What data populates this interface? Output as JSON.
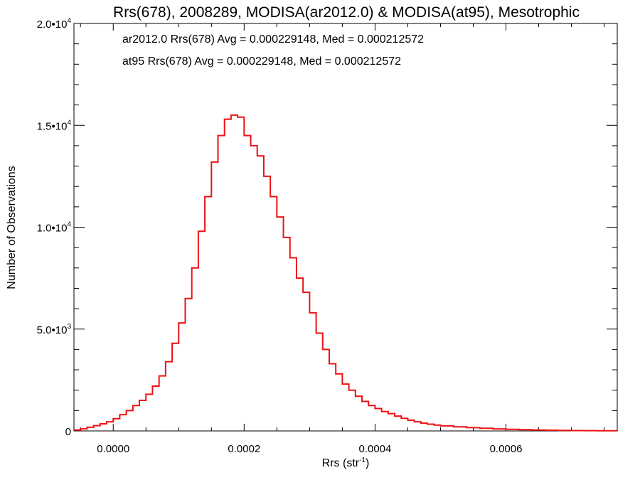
{
  "chart_data": {
    "type": "line",
    "title": "Rrs(678), 2008289, MODISA(ar2012.0) & MODISA(at95), Mesotrophic",
    "xlabel": "Rrs (str",
    "xlabel_sup": "-1",
    "xlabel_suffix": ")",
    "ylabel": "Number of Observations",
    "xlim": [
      -6e-05,
      0.00077
    ],
    "ylim": [
      0,
      20000
    ],
    "x_ticks": [
      {
        "value": 0.0,
        "label": "0.0000"
      },
      {
        "value": 0.0002,
        "label": "0.0002"
      },
      {
        "value": 0.0004,
        "label": "0.0004"
      },
      {
        "value": 0.0006,
        "label": "0.0006"
      }
    ],
    "y_ticks": [
      {
        "value": 0,
        "label": "0",
        "sup": ""
      },
      {
        "value": 5000,
        "label": "5.0•10",
        "sup": "3"
      },
      {
        "value": 10000,
        "label": "1.0•10",
        "sup": "4"
      },
      {
        "value": 15000,
        "label": "1.5•10",
        "sup": "4"
      },
      {
        "value": 20000,
        "label": "2.0•10",
        "sup": "4"
      }
    ],
    "annotations": [
      {
        "text": "ar2012.0 Rrs(678) Avg = 0.000229148, Med = 0.000212572",
        "color": "#000000"
      },
      {
        "text": "at95 Rrs(678) Avg = 0.000229148, Med = 0.000212572",
        "color": "#ee1111"
      }
    ],
    "series": [
      {
        "color": "#ee1111",
        "drawstyle": "steps",
        "x": [
          -6e-05,
          -5e-05,
          -4e-05,
          -3e-05,
          -2e-05,
          -1e-05,
          0.0,
          1e-05,
          2e-05,
          3e-05,
          4e-05,
          5e-05,
          6e-05,
          7e-05,
          8e-05,
          9e-05,
          0.0001,
          0.00011,
          0.00012,
          0.00013,
          0.00014,
          0.00015,
          0.00016,
          0.00017,
          0.00018,
          0.00019,
          0.0002,
          0.00021,
          0.00022,
          0.00023,
          0.00024,
          0.00025,
          0.00026,
          0.00027,
          0.00028,
          0.00029,
          0.0003,
          0.00031,
          0.00032,
          0.00033,
          0.00034,
          0.00035,
          0.00036,
          0.00037,
          0.00038,
          0.00039,
          0.0004,
          0.00041,
          0.00042,
          0.00043,
          0.00044,
          0.00045,
          0.00046,
          0.00047,
          0.00048,
          0.00049,
          0.0005,
          0.00052,
          0.00054,
          0.00056,
          0.00058,
          0.0006,
          0.00062,
          0.00064,
          0.00066,
          0.00068,
          0.0007,
          0.00072,
          0.00074,
          0.00077
        ],
        "y": [
          50,
          100,
          180,
          260,
          350,
          450,
          600,
          800,
          1000,
          1250,
          1500,
          1800,
          2200,
          2700,
          3400,
          4300,
          5300,
          6500,
          8000,
          9800,
          11500,
          13200,
          14500,
          15300,
          15500,
          15400,
          14500,
          14000,
          13500,
          12500,
          11500,
          10500,
          9500,
          8500,
          7500,
          6800,
          5800,
          4800,
          4000,
          3300,
          2800,
          2300,
          2000,
          1700,
          1450,
          1250,
          1100,
          950,
          850,
          730,
          620,
          530,
          450,
          380,
          330,
          290,
          250,
          200,
          160,
          130,
          100,
          80,
          60,
          45,
          35,
          25,
          18,
          12,
          8,
          5
        ]
      }
    ]
  }
}
